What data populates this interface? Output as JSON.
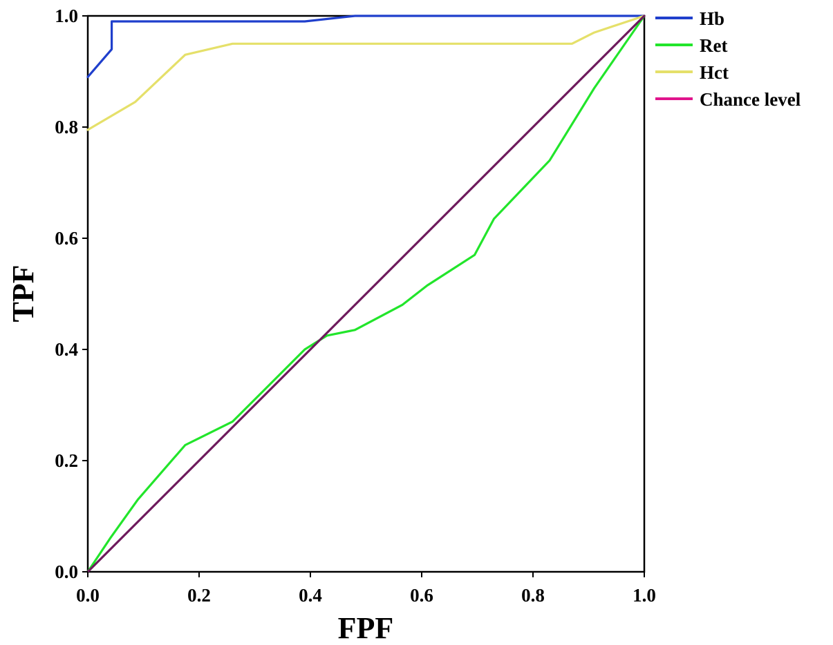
{
  "chart_data": {
    "type": "line",
    "xlabel": "FPF",
    "ylabel": "TPF",
    "xlim": [
      0,
      1
    ],
    "ylim": [
      0,
      1
    ],
    "x_ticks": [
      "0.0",
      "0.2",
      "0.4",
      "0.6",
      "0.8",
      "1.0"
    ],
    "y_ticks": [
      "0.0",
      "0.2",
      "0.4",
      "0.6",
      "0.8",
      "1.0"
    ],
    "grid": false,
    "legend_position": "outside-top-right",
    "series": [
      {
        "name": "Hb",
        "color": "#1f3fcc",
        "points": [
          [
            0,
            0.89
          ],
          [
            0.043,
            0.94
          ],
          [
            0.043,
            0.99
          ],
          [
            0.39,
            0.99
          ],
          [
            0.48,
            1.0
          ],
          [
            1.0,
            1.0
          ]
        ]
      },
      {
        "name": "Ret",
        "color": "#22e52b",
        "points": [
          [
            0,
            0
          ],
          [
            0.04,
            0.06
          ],
          [
            0.09,
            0.13
          ],
          [
            0.175,
            0.228
          ],
          [
            0.26,
            0.27
          ],
          [
            0.31,
            0.32
          ],
          [
            0.39,
            0.4
          ],
          [
            0.43,
            0.425
          ],
          [
            0.48,
            0.435
          ],
          [
            0.565,
            0.48
          ],
          [
            0.61,
            0.515
          ],
          [
            0.695,
            0.57
          ],
          [
            0.73,
            0.635
          ],
          [
            0.83,
            0.74
          ],
          [
            0.91,
            0.87
          ],
          [
            1.0,
            1.0
          ]
        ]
      },
      {
        "name": "Hct",
        "color": "#e5e06a",
        "points": [
          [
            0,
            0.795
          ],
          [
            0.085,
            0.845
          ],
          [
            0.175,
            0.93
          ],
          [
            0.26,
            0.95
          ],
          [
            0.87,
            0.95
          ],
          [
            0.91,
            0.97
          ],
          [
            1.0,
            1.0
          ]
        ]
      },
      {
        "name": "Chance level",
        "color": "#6e1a5c",
        "legend_color": "#e0148c",
        "points": [
          [
            0,
            0
          ],
          [
            1,
            1
          ]
        ]
      }
    ]
  }
}
